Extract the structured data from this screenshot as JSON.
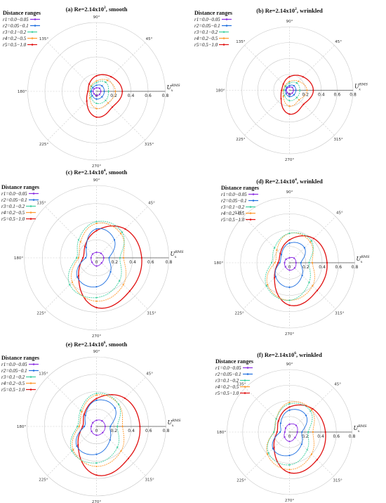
{
  "legend_title": "Distance ranges",
  "legend_entries": [
    "r1=0.0−0.05",
    "r2=0.05−0.1",
    "r3=0.1−0.2",
    "r4=0.2−0.5",
    "r5=0.5−1.0"
  ],
  "axis_label": "U",
  "axis_label_sub": "x",
  "axis_label_sup": "RMS",
  "colors": {
    "r1": "#8a2be2",
    "r2": "#1f6fe0",
    "r3": "#3fd0a0",
    "r4": "#ff9a2e",
    "r5": "#e01010",
    "grid": "#c8c8c8"
  },
  "chart_data": [
    {
      "type": "polar",
      "title": "(a) Re=2.14x10",
      "title_exp": "2",
      "title_suffix": ", smooth",
      "angular_ticks": [
        "90°",
        "45°",
        "135°",
        "180°",
        "225°",
        "270°",
        "315°"
      ],
      "radial_ticks": [
        "0.2",
        "0.4",
        "0.6",
        "0.8"
      ],
      "rlim": [
        0,
        0.8
      ],
      "series": [
        {
          "name": "r1",
          "values": [
            0.05,
            0.05,
            0.04,
            0.04,
            0.04,
            0.04,
            0.05,
            0.05
          ]
        },
        {
          "name": "r2",
          "values": [
            0.09,
            0.09,
            0.07,
            0.06,
            0.06,
            0.07,
            0.09,
            0.09
          ]
        },
        {
          "name": "r3",
          "values": [
            0.14,
            0.15,
            0.1,
            0.08,
            0.07,
            0.09,
            0.14,
            0.15
          ]
        },
        {
          "name": "r4",
          "values": [
            0.22,
            0.18,
            0.12,
            0.09,
            0.08,
            0.11,
            0.2,
            0.19
          ]
        },
        {
          "name": "r5",
          "values": [
            0.3,
            0.24,
            0.18,
            0.12,
            0.1,
            0.16,
            0.3,
            0.26
          ]
        }
      ]
    },
    {
      "type": "polar",
      "title": "(b) Re=2.14x10",
      "title_exp": "2",
      "title_suffix": ", wrinkled",
      "angular_ticks": [
        "90°",
        "45°",
        "135°",
        "180°",
        "225°",
        "270°",
        "315°"
      ],
      "radial_ticks": [
        "0.2",
        "0.4",
        "0.6",
        "0.8"
      ],
      "rlim": [
        0,
        0.8
      ],
      "series": [
        {
          "name": "r1",
          "values": [
            0.05,
            0.05,
            0.04,
            0.04,
            0.04,
            0.04,
            0.05,
            0.05
          ]
        },
        {
          "name": "r2",
          "values": [
            0.08,
            0.08,
            0.06,
            0.05,
            0.05,
            0.06,
            0.08,
            0.08
          ]
        },
        {
          "name": "r3",
          "values": [
            0.13,
            0.13,
            0.09,
            0.07,
            0.07,
            0.09,
            0.13,
            0.13
          ]
        },
        {
          "name": "r4",
          "values": [
            0.22,
            0.16,
            0.11,
            0.08,
            0.08,
            0.11,
            0.2,
            0.17
          ]
        },
        {
          "name": "r5",
          "values": [
            0.3,
            0.24,
            0.17,
            0.11,
            0.1,
            0.15,
            0.3,
            0.25
          ]
        }
      ]
    },
    {
      "type": "polar",
      "title": "(c) Re=2.14x10",
      "title_exp": "4",
      "title_suffix": ", smooth",
      "angular_ticks": [
        "90°",
        "45°",
        "135°",
        "180°",
        "225°",
        "270°",
        "315°"
      ],
      "radial_ticks": [
        "0.2",
        "0.4",
        "0.6",
        "0.8"
      ],
      "rlim": [
        0,
        0.8
      ],
      "series": [
        {
          "name": "r1",
          "values": [
            0.08,
            0.07,
            0.06,
            0.06,
            0.06,
            0.07,
            0.09,
            0.08
          ]
        },
        {
          "name": "r2",
          "values": [
            0.14,
            0.28,
            0.32,
            0.16,
            0.12,
            0.3,
            0.32,
            0.22
          ]
        },
        {
          "name": "r3",
          "values": [
            0.26,
            0.4,
            0.4,
            0.28,
            0.22,
            0.42,
            0.44,
            0.36
          ]
        },
        {
          "name": "r4",
          "values": [
            0.3,
            0.38,
            0.38,
            0.25,
            0.2,
            0.38,
            0.48,
            0.42
          ]
        },
        {
          "name": "r5",
          "values": [
            0.5,
            0.45,
            0.3,
            0.18,
            0.15,
            0.28,
            0.55,
            0.52
          ]
        }
      ]
    },
    {
      "type": "polar",
      "title": "(d) Re=2.14x10",
      "title_exp": "4",
      "title_suffix": ", wrinkled",
      "angular_ticks": [
        "90°",
        "45°",
        "135°",
        "180°",
        "225°",
        "270°",
        "315°"
      ],
      "radial_ticks": [
        "0.2",
        "0.4",
        "0.6",
        "0.8"
      ],
      "rlim": [
        0,
        0.8
      ],
      "series": [
        {
          "name": "r1",
          "values": [
            0.08,
            0.08,
            0.06,
            0.06,
            0.06,
            0.07,
            0.09,
            0.09
          ]
        },
        {
          "name": "r2",
          "values": [
            0.14,
            0.26,
            0.24,
            0.14,
            0.12,
            0.24,
            0.3,
            0.22
          ]
        },
        {
          "name": "r3",
          "values": [
            0.24,
            0.38,
            0.36,
            0.26,
            0.22,
            0.4,
            0.46,
            0.34
          ]
        },
        {
          "name": "r4",
          "values": [
            0.28,
            0.36,
            0.36,
            0.22,
            0.18,
            0.38,
            0.46,
            0.4
          ]
        },
        {
          "name": "r5",
          "values": [
            0.46,
            0.42,
            0.28,
            0.16,
            0.14,
            0.26,
            0.52,
            0.48
          ]
        }
      ]
    },
    {
      "type": "polar",
      "title": "(e) Re=2.14x10",
      "title_exp": "6",
      "title_suffix": ", smooth",
      "angular_ticks": [
        "90°",
        "45°",
        "135°",
        "180°",
        "225°",
        "270°",
        "315°"
      ],
      "radial_ticks": [
        "0.2",
        "0.4",
        "0.6",
        "0.8"
      ],
      "rlim": [
        0,
        0.8
      ],
      "series": [
        {
          "name": "r1",
          "values": [
            0.1,
            0.09,
            0.07,
            0.06,
            0.06,
            0.08,
            0.1,
            0.1
          ]
        },
        {
          "name": "r2",
          "values": [
            0.16,
            0.3,
            0.3,
            0.18,
            0.14,
            0.32,
            0.32,
            0.22
          ]
        },
        {
          "name": "r3",
          "values": [
            0.24,
            0.36,
            0.38,
            0.26,
            0.22,
            0.4,
            0.42,
            0.34
          ]
        },
        {
          "name": "r4",
          "values": [
            0.3,
            0.36,
            0.36,
            0.24,
            0.2,
            0.38,
            0.46,
            0.4
          ]
        },
        {
          "name": "r5",
          "values": [
            0.5,
            0.46,
            0.32,
            0.2,
            0.16,
            0.3,
            0.56,
            0.52
          ]
        }
      ]
    },
    {
      "type": "polar",
      "title": "(f) Re=2.14x10",
      "title_exp": "6",
      "title_suffix": ", wrinkled",
      "angular_ticks": [
        "90°",
        "45°",
        "135°",
        "180°",
        "225°",
        "270°",
        "315°"
      ],
      "radial_ticks": [
        "0.2",
        "0.4",
        "0.6",
        "0.8"
      ],
      "rlim": [
        0,
        0.8
      ],
      "series": [
        {
          "name": "r1",
          "values": [
            0.1,
            0.12,
            0.1,
            0.07,
            0.06,
            0.09,
            0.12,
            0.1
          ]
        },
        {
          "name": "r2",
          "values": [
            0.16,
            0.3,
            0.28,
            0.16,
            0.12,
            0.3,
            0.3,
            0.22
          ]
        },
        {
          "name": "r3",
          "values": [
            0.24,
            0.38,
            0.36,
            0.24,
            0.2,
            0.38,
            0.42,
            0.32
          ]
        },
        {
          "name": "r4",
          "values": [
            0.3,
            0.4,
            0.38,
            0.24,
            0.2,
            0.4,
            0.48,
            0.4
          ]
        },
        {
          "name": "r5",
          "values": [
            0.46,
            0.42,
            0.32,
            0.2,
            0.16,
            0.28,
            0.52,
            0.5
          ]
        }
      ]
    }
  ]
}
